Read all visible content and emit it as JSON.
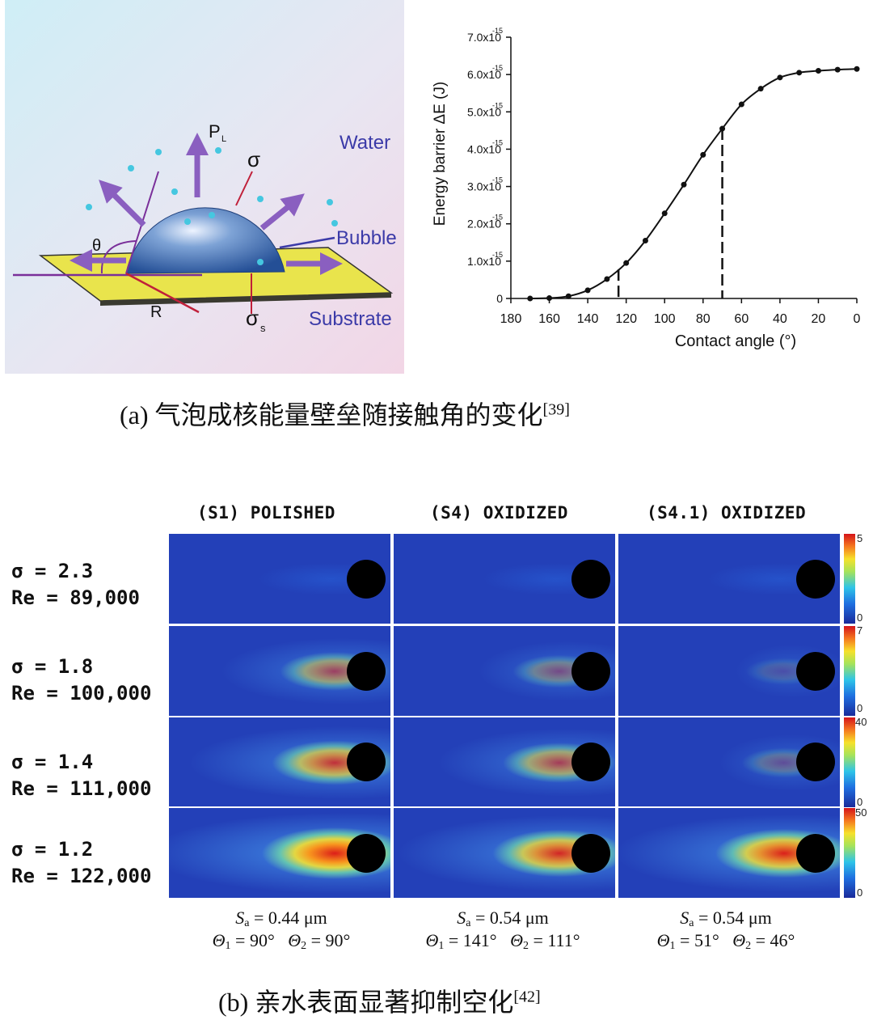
{
  "figure": {
    "part_a": {
      "schematic": {
        "labels": {
          "pl": "P",
          "pl_sub": "L",
          "sigma": "σ",
          "water": "Water",
          "theta": "θ",
          "bubble": "Bubble",
          "r": "R",
          "sigma_s": "σ",
          "sigma_s_sub": "s",
          "substrate": "Substrate"
        },
        "colors": {
          "bubble": "#2f5fa8",
          "substrate": "#e7e24a",
          "label_blue": "#3b3aa8",
          "force_line": "#c0203a",
          "arrow": "#8a5fc0"
        }
      },
      "caption": {
        "text": "(a) 气泡成核能量壁垒随接触角的变化",
        "ref": "[39]"
      }
    },
    "part_b": {
      "column_headers": [
        "(S1) POLISHED",
        "(S4) OXIDIZED",
        "(S4.1) OXIDIZED"
      ],
      "rows": [
        {
          "sigma": "σ = 2.3",
          "re": "Re = 89,000",
          "colorbar_max": "5",
          "colorbar_min": "0"
        },
        {
          "sigma": "σ = 1.8",
          "re": "Re = 100,000",
          "colorbar_max": "7",
          "colorbar_min": "0"
        },
        {
          "sigma": "σ = 1.4",
          "re": "Re = 111,000",
          "colorbar_max": "40",
          "colorbar_min": "0"
        },
        {
          "sigma": "σ = 1.2",
          "re": "Re = 122,000",
          "colorbar_max": "50",
          "colorbar_min": "0"
        }
      ],
      "intensity": [
        [
          0.04,
          0.0,
          0.05
        ],
        [
          0.55,
          0.35,
          0.15
        ],
        [
          0.75,
          0.6,
          0.25
        ],
        [
          1.0,
          0.85,
          0.9
        ]
      ],
      "surfaces": [
        {
          "sa": "S",
          "sa_sub": "a",
          "sa_value": " = 0.44 μm",
          "t1": "Θ",
          "t1_sub": "1",
          "t1_value": " = 90°",
          "t2": "Θ",
          "t2_sub": "2",
          "t2_value": " = 90°"
        },
        {
          "sa": "S",
          "sa_sub": "a",
          "sa_value": " = 0.54 μm",
          "t1": "Θ",
          "t1_sub": "1",
          "t1_value": " = 141°",
          "t2": "Θ",
          "t2_sub": "2",
          "t2_value": " = 111°"
        },
        {
          "sa": "S",
          "sa_sub": "a",
          "sa_value": " = 0.54 μm",
          "t1": "Θ",
          "t1_sub": "1",
          "t1_value": " = 51°",
          "t2": "Θ",
          "t2_sub": "2",
          "t2_value": " = 46°"
        }
      ],
      "caption": {
        "text": "(b) 亲水表面显著抑制空化",
        "ref": "[42]"
      }
    }
  },
  "chart_data": {
    "type": "line",
    "title": "",
    "xlabel": "Contact angle (°)",
    "ylabel": "Energy barrier ΔE (J)",
    "xlim": [
      180,
      0
    ],
    "ylim": [
      0,
      7e-15
    ],
    "x_reversed": true,
    "x_ticks": [
      "180",
      "160",
      "140",
      "120",
      "100",
      "80",
      "60",
      "40",
      "20",
      "0"
    ],
    "y_ticks": [
      {
        "mantissa": "0",
        "exp": ""
      },
      {
        "mantissa": "1.0x10",
        "exp": "-15"
      },
      {
        "mantissa": "2.0x10",
        "exp": "-15"
      },
      {
        "mantissa": "3.0x10",
        "exp": "-15"
      },
      {
        "mantissa": "4.0x10",
        "exp": "-15"
      },
      {
        "mantissa": "5.0x10",
        "exp": "-15"
      },
      {
        "mantissa": "6.0x10",
        "exp": "-15"
      },
      {
        "mantissa": "7.0x10",
        "exp": "-15"
      }
    ],
    "grid": false,
    "x": [
      170,
      160,
      150,
      140,
      130,
      120,
      110,
      100,
      90,
      80,
      70,
      60,
      50,
      40,
      30,
      20,
      10,
      0
    ],
    "values": [
      0.0,
      1e-17,
      6e-17,
      2.2e-16,
      5.2e-16,
      9.5e-16,
      1.55e-15,
      2.28e-15,
      3.05e-15,
      3.85e-15,
      4.55e-15,
      5.2e-15,
      5.62e-15,
      5.92e-15,
      6.05e-15,
      6.1e-15,
      6.13e-15,
      6.15e-15
    ],
    "markers": "points",
    "reference_lines_x": [
      124,
      70
    ]
  }
}
